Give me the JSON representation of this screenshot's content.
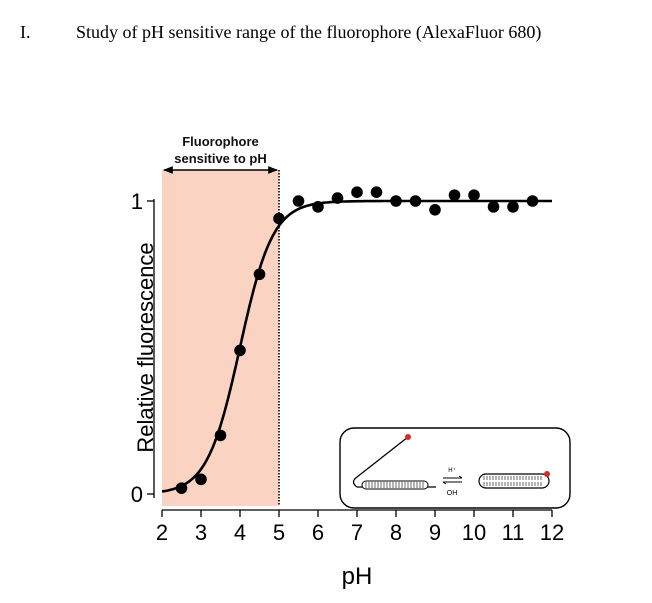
{
  "section": {
    "number": "I.",
    "title": "Study of pH sensitive range of the fluorophore (AlexaFluor 680)"
  },
  "chart_data": {
    "type": "scatter",
    "xlabel": "pH",
    "ylabel": "Relative fluorescence",
    "xlim": [
      2,
      12
    ],
    "ylim": [
      0,
      1
    ],
    "xticks": [
      "2",
      "3",
      "4",
      "5",
      "6",
      "7",
      "8",
      "9",
      "10",
      "11",
      "12"
    ],
    "yticks": [
      "0",
      "1"
    ],
    "grid": false,
    "legend": "none",
    "shaded_region": {
      "x_range": [
        2,
        5
      ],
      "label_line1": "Fluorophore",
      "label_line2": "sensitive to pH",
      "color": "#fbd3c3"
    },
    "series": [
      {
        "points": [
          [
            2.5,
            0.02
          ],
          [
            3.0,
            0.05
          ],
          [
            3.5,
            0.2
          ],
          [
            4.0,
            0.49
          ],
          [
            4.5,
            0.75
          ],
          [
            5.0,
            0.94
          ],
          [
            5.5,
            1.0
          ],
          [
            6.0,
            0.98
          ],
          [
            6.5,
            1.01
          ],
          [
            7.0,
            1.03
          ],
          [
            7.5,
            1.03
          ],
          [
            8.0,
            1.0
          ],
          [
            8.5,
            1.0
          ],
          [
            9.0,
            0.97
          ],
          [
            9.5,
            1.02
          ],
          [
            10.0,
            1.02
          ],
          [
            10.5,
            0.98
          ],
          [
            11.0,
            0.98
          ],
          [
            11.5,
            1.0
          ]
        ],
        "fit": {
          "model": "sigmoid",
          "midpoint": 4.0,
          "slope": 0.42
        }
      }
    ],
    "inset": {
      "equilibrium_top": "H⁺",
      "equilibrium_bottom": "OH",
      "dye_color": "#d42a2a"
    }
  }
}
